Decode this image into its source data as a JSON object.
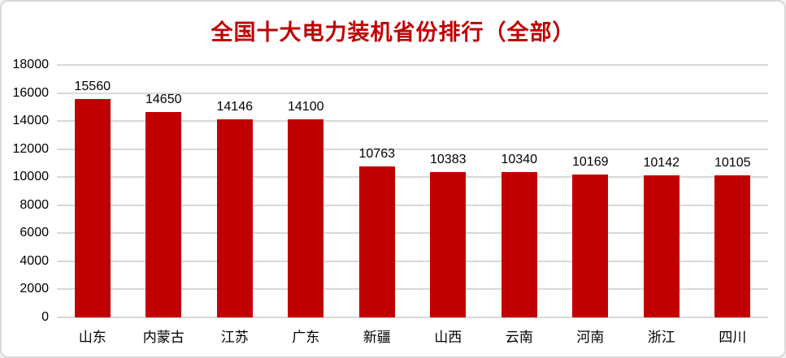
{
  "chart_data": {
    "type": "bar",
    "title": "全国十大电力装机省份排行（全部）",
    "categories": [
      "山东",
      "内蒙古",
      "江苏",
      "广东",
      "新疆",
      "山西",
      "云南",
      "河南",
      "浙江",
      "四川"
    ],
    "values": [
      15560,
      14650,
      14146,
      14100,
      10763,
      10383,
      10340,
      10169,
      10142,
      10105
    ],
    "xlabel": "",
    "ylabel": "",
    "ylim": [
      0,
      18000
    ],
    "ytick_step": 2000,
    "ytick_labels": [
      "0",
      "2000",
      "4000",
      "6000",
      "8000",
      "10000",
      "12000",
      "14000",
      "16000",
      "18000"
    ],
    "grid": true,
    "legend": false,
    "bar_color": "#c00000",
    "title_color": "#c00000",
    "gridline_color": "#d9d9d9",
    "label_color": "#000000",
    "background_color": "#ffffff",
    "border_color": "#d9d9d9"
  }
}
